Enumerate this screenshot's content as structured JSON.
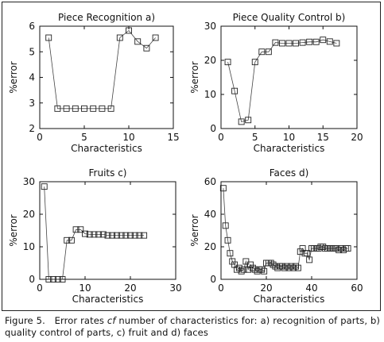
{
  "caption": {
    "label": "Figure 5.",
    "text_before": "   Error rates ",
    "italic": "cf",
    "text_after": " number of characteristics for: a) recognition of parts, b) quality control of parts, c) fruit and d) faces"
  },
  "chart_data": [
    {
      "type": "line",
      "title": "Piece Recognition a)",
      "xlabel": "Characteristics",
      "ylabel": "%error",
      "xlim": [
        0,
        15
      ],
      "ylim": [
        2,
        6
      ],
      "xticks": [
        0,
        5,
        10,
        15
      ],
      "yticks": [
        2,
        3,
        4,
        5,
        6
      ],
      "marker": "square",
      "series": [
        {
          "x": [
            1,
            2,
            3,
            4,
            5,
            6,
            7,
            8,
            9,
            10,
            11,
            12,
            13
          ],
          "y": [
            5.55,
            2.78,
            2.78,
            2.78,
            2.78,
            2.78,
            2.78,
            2.78,
            5.55,
            5.83,
            5.4,
            5.14,
            5.55
          ]
        }
      ]
    },
    {
      "type": "line",
      "title": "Piece Quality Control b)",
      "xlabel": "Characteristics",
      "ylabel": "%error",
      "xlim": [
        0,
        20
      ],
      "ylim": [
        0,
        30
      ],
      "xticks": [
        0,
        5,
        10,
        15,
        20
      ],
      "yticks": [
        0,
        10,
        20,
        30
      ],
      "marker": "square",
      "series": [
        {
          "x": [
            1,
            2,
            3,
            4,
            5,
            6,
            7,
            8,
            9,
            10,
            11,
            12,
            13,
            14,
            15,
            16,
            17
          ],
          "y": [
            19.5,
            11,
            2,
            2.5,
            19.5,
            22.5,
            22.5,
            25.2,
            25,
            25,
            25,
            25.2,
            25.4,
            25.4,
            26,
            25.5,
            25
          ]
        }
      ]
    },
    {
      "type": "line",
      "title": "Fruits c)",
      "xlabel": "Characteristics",
      "ylabel": "%error",
      "xlim": [
        0,
        30
      ],
      "ylim": [
        0,
        30
      ],
      "xticks": [
        0,
        10,
        20,
        30
      ],
      "yticks": [
        0,
        10,
        20,
        30
      ],
      "marker": "square",
      "series": [
        {
          "x": [
            1,
            2,
            3,
            4,
            5,
            6,
            7,
            8,
            9,
            10,
            11,
            12,
            13,
            14,
            15,
            16,
            17,
            18,
            19,
            20,
            21,
            22,
            23
          ],
          "y": [
            28.5,
            0,
            0,
            0,
            0,
            12,
            12,
            15.3,
            15.3,
            14,
            13.8,
            13.8,
            13.8,
            13.8,
            13.5,
            13.5,
            13.5,
            13.5,
            13.5,
            13.5,
            13.5,
            13.5,
            13.5
          ]
        }
      ]
    },
    {
      "type": "line",
      "title": "Faces d)",
      "xlabel": "Characteristics",
      "ylabel": "%error",
      "xlim": [
        0,
        60
      ],
      "ylim": [
        0,
        60
      ],
      "xticks": [
        0,
        20,
        40,
        60
      ],
      "yticks": [
        0,
        20,
        40,
        60
      ],
      "marker": "square",
      "series": [
        {
          "x": [
            1,
            2,
            3,
            4,
            5,
            6,
            7,
            8,
            9,
            10,
            11,
            12,
            13,
            14,
            15,
            16,
            17,
            18,
            19,
            20,
            21,
            22,
            23,
            24,
            25,
            26,
            27,
            28,
            29,
            30,
            31,
            32,
            33,
            34,
            35,
            36,
            37,
            38,
            39,
            40,
            41,
            42,
            43,
            44,
            45,
            46,
            47,
            48,
            49,
            50,
            51,
            52,
            53,
            54,
            55,
            56
          ],
          "y": [
            56,
            33,
            24,
            16,
            11,
            9,
            6,
            7,
            5,
            6,
            11,
            6,
            9,
            7,
            6,
            5,
            6,
            6,
            5,
            10,
            10,
            10,
            9,
            8,
            7,
            8,
            8,
            7,
            8,
            7,
            8,
            7,
            8,
            7,
            17,
            19,
            16,
            16,
            12,
            19,
            19,
            19,
            19,
            20,
            20,
            19,
            19,
            19,
            19,
            19,
            19,
            18,
            19,
            18,
            19,
            19
          ]
        }
      ]
    }
  ]
}
